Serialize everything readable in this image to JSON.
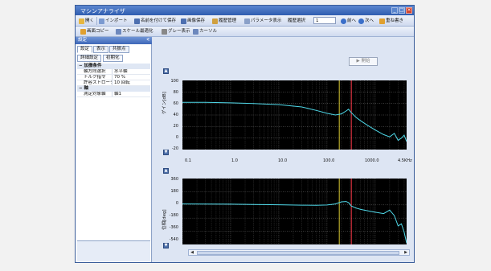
{
  "window": {
    "title": "マシンアナライザ"
  },
  "toolbar1": {
    "open": "開く",
    "import": "インポート",
    "save_as": "名前を付けて保存",
    "save_image": "画像保存",
    "history": "履歴管理",
    "param_view": "パラメータ表示",
    "history_select_label": "履歴選択",
    "history_select_value": "1",
    "prev": "前へ",
    "next": "次へ",
    "overlay": "重ね書き"
  },
  "toolbar2": {
    "copy_image": "画面コピー",
    "scale_fit": "スケール最適化",
    "gray_view": "グレー表示",
    "cursor": "カーソル"
  },
  "left_pane": {
    "title": "設定",
    "tabs": [
      "設定",
      "表示",
      "共振点"
    ],
    "buttons": [
      "詳細設定",
      "初期化"
    ],
    "categories": [
      {
        "name": "加振条件",
        "rows": [
          {
            "key": "軸方向選択",
            "value": "水平軸"
          },
          {
            "key": "トルク指令",
            "value": "70 %"
          },
          {
            "key": "許容ストローク",
            "value": "10 回転"
          }
        ]
      },
      {
        "name": "軸",
        "rows": [
          {
            "key": "測定対象軸",
            "value": "軸1"
          }
        ]
      }
    ]
  },
  "start_button": "開始",
  "gain_chart": {
    "ylabel": "ゲイン[dB]",
    "yticks": [
      "100",
      "80",
      "60",
      "40",
      "20",
      "0",
      "-20"
    ],
    "xticks": [
      "0.1",
      "1.0",
      "10.0",
      "100.0",
      "1000.0",
      "4.5KHz"
    ]
  },
  "phase_chart": {
    "ylabel": "位相[deg]",
    "yticks": [
      "360",
      "180",
      "0",
      "-180",
      "-360",
      "-540"
    ]
  },
  "colors": {
    "trace": "#4fd8e8",
    "cursor_yellow": "#d8c832",
    "cursor_red": "#ff3a4a",
    "grid": "#777777"
  },
  "chart_data": [
    {
      "type": "line",
      "title": "",
      "xlabel": "",
      "ylabel": "ゲイン[dB]",
      "xscale": "log",
      "xlim": [
        0.1,
        4500
      ],
      "ylim": [
        -20,
        100
      ],
      "grid": true,
      "series": [
        {
          "x": [
            0.1,
            0.3,
            1,
            3,
            10,
            30,
            60,
            100,
            150,
            200,
            250,
            280,
            320,
            400,
            500,
            700,
            1000,
            1500,
            2000,
            2500,
            3000,
            3500,
            4000,
            4500
          ],
          "y": [
            62,
            62,
            61,
            60,
            58,
            54,
            48,
            43,
            40,
            42,
            47,
            50,
            44,
            36,
            30,
            22,
            14,
            6,
            2,
            8,
            -4,
            0,
            5,
            -6
          ]
        }
      ]
    },
    {
      "type": "line",
      "title": "",
      "xlabel": "",
      "ylabel": "位相[deg]",
      "xscale": "log",
      "xlim": [
        0.1,
        4500
      ],
      "ylim": [
        -600,
        360
      ],
      "grid": true,
      "series": [
        {
          "x": [
            0.1,
            0.3,
            1,
            3,
            10,
            30,
            60,
            100,
            150,
            200,
            250,
            280,
            320,
            400,
            500,
            700,
            1000,
            1500,
            2000,
            2500,
            3000,
            3500,
            4000,
            4500
          ],
          "y": [
            -10,
            -12,
            -14,
            -18,
            -22,
            -28,
            -30,
            -25,
            -10,
            20,
            25,
            10,
            -40,
            -70,
            -90,
            -110,
            -130,
            -150,
            -100,
            -180,
            -330,
            -300,
            -420,
            -580
          ]
        }
      ]
    }
  ]
}
